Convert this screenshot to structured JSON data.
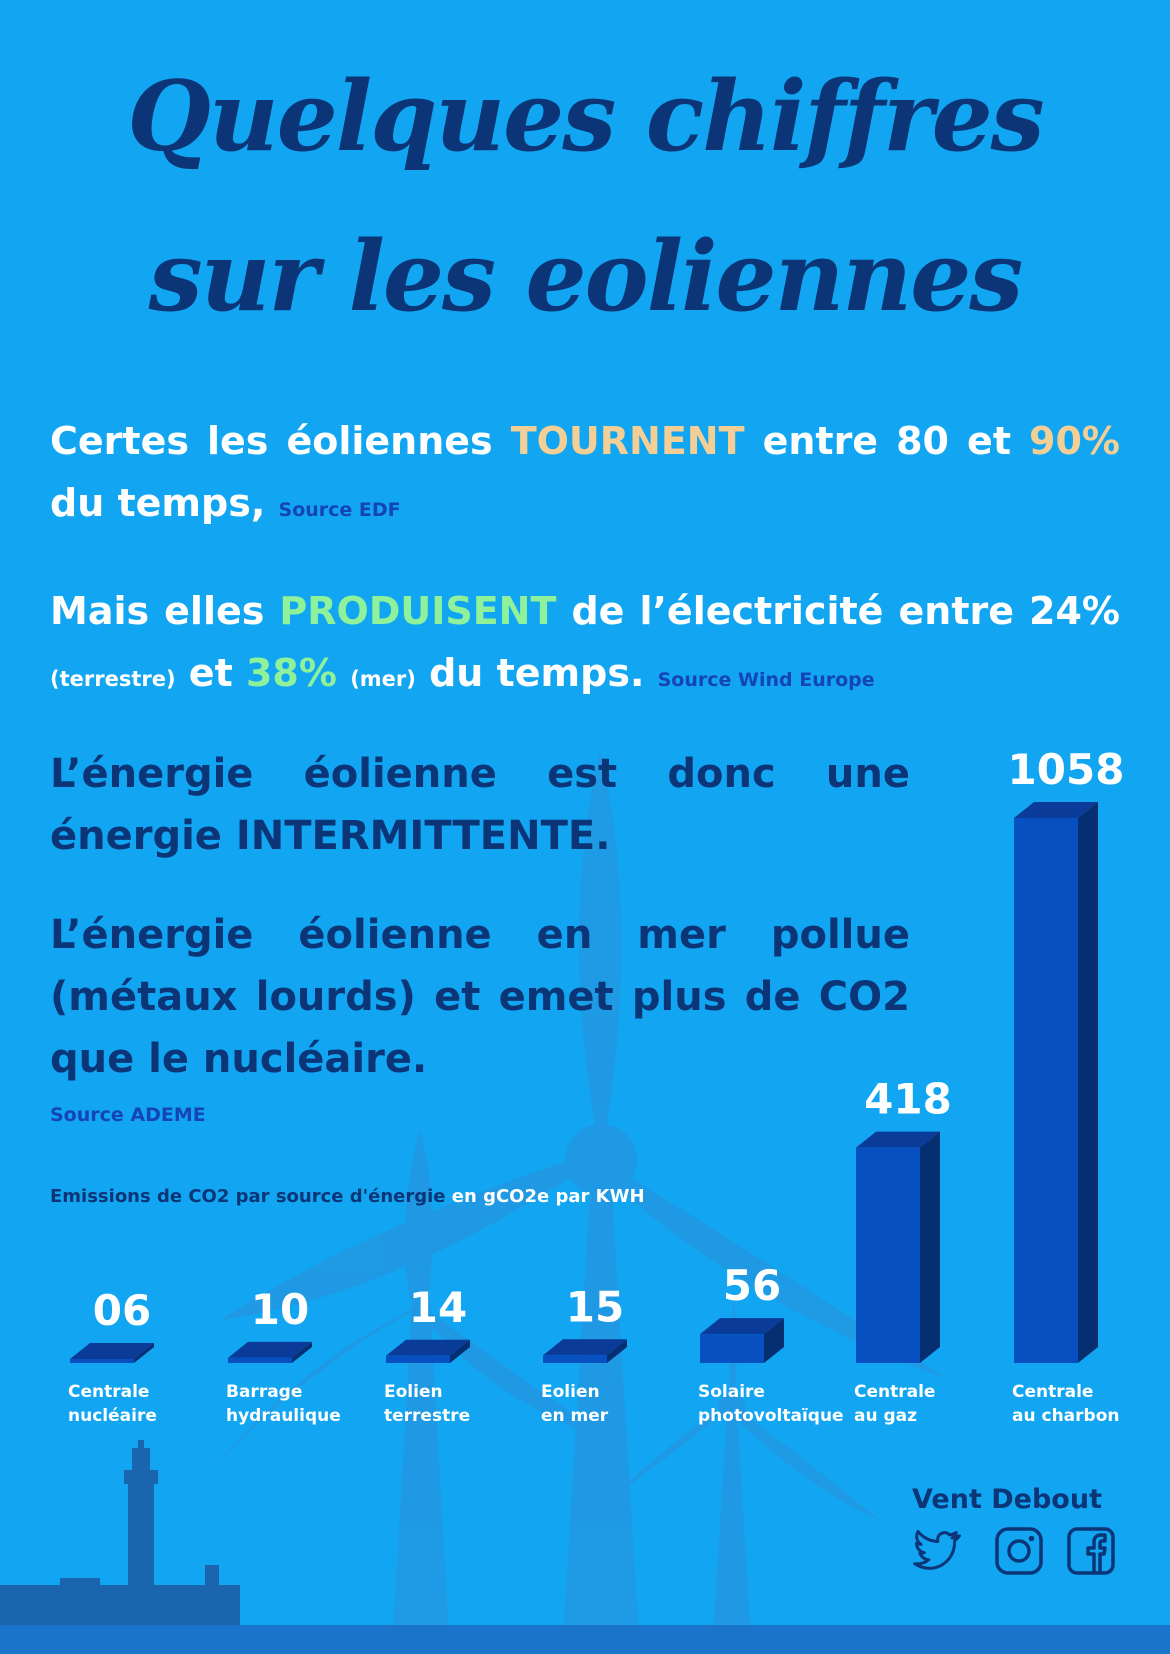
{
  "header": {
    "title_line1": "Quelques chiffres",
    "title_line2": "sur les eoliennes"
  },
  "para1": {
    "t1": "Certes les éoliennes ",
    "highlight": "TOURNENT",
    "t2": " entre 80 et ",
    "pct": "90%",
    "t3": " du temps,",
    "source": "Source EDF"
  },
  "para2": {
    "t1": "Mais elles ",
    "highlight": "PRODUISENT",
    "t2": " de l’électricité entre ",
    "pct1": "24%",
    "paren1": "(terrestre)",
    "and": " et ",
    "pct2": "38%",
    "paren2": "(mer)",
    "t3": " du temps.",
    "source": "Source Wind Europe"
  },
  "para3": {
    "text": "L’énergie éolienne est donc une énergie INTERMITTENTE."
  },
  "para4": {
    "text": "L’énergie éolienne en mer pollue (métaux lourds) et emet plus de CO2 que le nucléaire.",
    "source": "Source ADEME"
  },
  "chart_title": {
    "main": "Emissions de CO2 par source d'énergie",
    "unit": "en gCO2e par KWH"
  },
  "chart_data": {
    "type": "bar",
    "title": "Emissions de CO2 par source d'énergie en gCO2e par KWH",
    "categories": [
      "Centrale nucléaire",
      "Barrage hydraulique",
      "Eolien terrestre",
      "Eolien en mer",
      "Solaire photovoltaïque",
      "Centrale au gaz",
      "Centrale au charbon"
    ],
    "category_lines": [
      [
        "Centrale",
        "nucléaire"
      ],
      [
        "Barrage",
        "hydraulique"
      ],
      [
        "Eolien",
        "terrestre"
      ],
      [
        "Eolien",
        "en mer"
      ],
      [
        "Solaire",
        "photovoltaïque"
      ],
      [
        "Centrale",
        "au gaz"
      ],
      [
        "Centrale",
        "au charbon"
      ]
    ],
    "values": [
      6,
      10,
      14,
      15,
      56,
      418,
      1058
    ],
    "value_labels": [
      "06",
      "10",
      "14",
      "15",
      "56",
      "418",
      "1058"
    ],
    "ylim": [
      0,
      1058
    ],
    "grid": false,
    "legend": "none"
  },
  "colors": {
    "background": "#12a6f2",
    "dark_blue": "#0b3577",
    "bar_front": "#0750c2",
    "bar_side": "#062f72",
    "bar_top": "#0a3b98",
    "orange": "#f3cf95",
    "green": "#8ff29a"
  },
  "footer": {
    "brand": "Vent Debout",
    "icons": [
      "twitter-icon",
      "instagram-icon",
      "facebook-icon"
    ]
  }
}
